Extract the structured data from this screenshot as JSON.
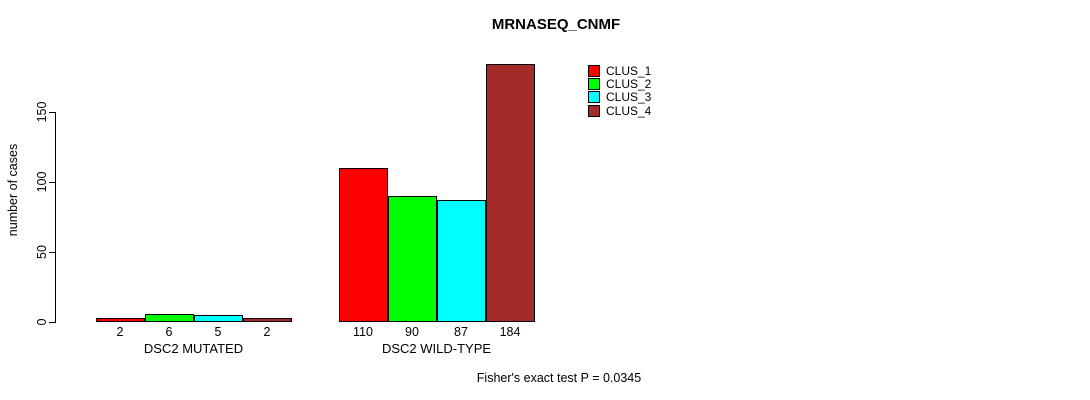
{
  "title": "MRNASEQ_CNMF",
  "footer": "Fisher's exact test P = 0.0345",
  "legend": [
    {
      "label": "CLUS_1",
      "color": "#ff0000"
    },
    {
      "label": "CLUS_2",
      "color": "#00ff00"
    },
    {
      "label": "CLUS_3",
      "color": "#00ffff"
    },
    {
      "label": "CLUS_4",
      "color": "#a52a2a"
    }
  ],
  "colors": {
    "bar_border": "#000000",
    "axis": "#000000",
    "text": "#000000",
    "background": "#ffffff"
  },
  "chart_data": {
    "type": "bar",
    "title": "MRNASEQ_CNMF",
    "xlabel": "",
    "ylabel": "number of cases",
    "categories": [
      "DSC2 MUTATED",
      "DSC2 WILD-TYPE"
    ],
    "series": [
      {
        "name": "CLUS_1",
        "color": "#ff0000",
        "values": [
          2,
          110
        ]
      },
      {
        "name": "CLUS_2",
        "color": "#00ff00",
        "values": [
          6,
          90
        ]
      },
      {
        "name": "CLUS_3",
        "color": "#00ffff",
        "values": [
          5,
          87
        ]
      },
      {
        "name": "CLUS_4",
        "color": "#a52a2a",
        "values": [
          2,
          184
        ]
      }
    ],
    "bar_value_labels": [
      [
        "2",
        "6",
        "5",
        "2"
      ],
      [
        "110",
        "90",
        "87",
        "184"
      ]
    ],
    "yticks": [
      0,
      50,
      100,
      150
    ],
    "ylim": [
      0,
      190
    ],
    "grid": false,
    "legend_position": "top-right",
    "annotation": "Fisher's exact test P = 0.0345"
  }
}
